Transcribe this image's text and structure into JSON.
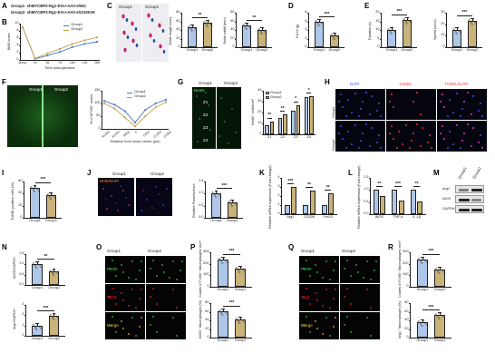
{
  "colors": {
    "group1": "#aec7e8",
    "group2": "#c9b37a",
    "line1": "#4a78c2",
    "line2": "#c6a24a",
    "dapi": "#3a57ff",
    "tunel": "#ff3535",
    "green": "#39d94a"
  },
  "panels": {
    "A": "A",
    "B": "B",
    "C": "C",
    "D": "D",
    "E": "E",
    "F": "F",
    "G": "G",
    "H": "H",
    "I": "I",
    "J": "J",
    "K": "K",
    "L": "L",
    "M": "M",
    "N": "N",
    "O": "O",
    "P": "P",
    "Q": "Q",
    "R": "R"
  },
  "a": {
    "line1_label": "Group1",
    "line1_value": "shMYCBP2-Rg1-EVs+AAV-shNC",
    "line2_label": "Group2",
    "line2_value": "shMYCBP2-Rg1-EVs+AAV-shS100A9"
  },
  "sig": {
    "s2": "**",
    "s3": "***",
    "s1": "*"
  },
  "groups": [
    "Group1",
    "Group2"
  ],
  "b": {
    "ylabel": "BMS score",
    "xlabel": "Time post-operative",
    "legend": [
      "Group1",
      "Group2"
    ],
    "xticks": [
      "preop",
      "1d",
      "3d",
      "7d",
      "14d",
      "21d",
      "28d"
    ],
    "yticks": [
      "0",
      "2",
      "4",
      "6",
      "8",
      "10"
    ]
  },
  "c": {
    "img_labels": [
      "Group1",
      "Group2"
    ],
    "p1": {
      "ylabel": "Stride length (mm)",
      "yticks": [
        "0",
        "20",
        "40",
        "60",
        "80"
      ]
    },
    "p2": {
      "ylabel": "Stride width (mm)",
      "yticks": [
        "0",
        "20",
        "40",
        "60",
        "80"
      ]
    }
  },
  "d": {
    "ylabel": "Force (g)",
    "yticks": [
      "0",
      "2",
      "4",
      "6",
      "8"
    ]
  },
  "e": {
    "p1": {
      "ylabel": "Duration (s)",
      "yticks": [
        "0",
        "5",
        "10",
        "15",
        "20"
      ]
    },
    "p2": {
      "ylabel": "Speed (cm/s)",
      "yticks": [
        "0",
        "10",
        "20",
        "30"
      ]
    }
  },
  "f": {
    "img_labels": [
      "Group1",
      "Group2"
    ],
    "ylabel": "% of NF200⁺ axons",
    "xlabel": "Distance from lesion centre (µm)",
    "legend": [
      "Group1",
      "Group2"
    ],
    "yticks": [
      "0",
      "50",
      "100",
      "150"
    ],
    "xticks": [
      "R1500",
      "R1000",
      "R500",
      "0",
      "C500",
      "C1000",
      "C1500"
    ]
  },
  "g": {
    "img_labels": [
      "Group1",
      "Group2"
    ],
    "channel": "NeuN",
    "zones": [
      "Z1",
      "Z2",
      "Z3",
      "Z4"
    ],
    "ylabel": "NeuN⁺ cells/mm²",
    "legend": [
      "Group1",
      "Group2"
    ],
    "yticks": [
      "0",
      "10",
      "20",
      "30",
      "40"
    ]
  },
  "h": {
    "cols": [
      "DAPI",
      "TUNEL",
      "TUNEL/DAPI"
    ],
    "rows": [
      "Group1",
      "Group2"
    ]
  },
  "i": {
    "ylabel": "TUNEL positive cells (%)",
    "yticks": [
      "0",
      "20",
      "40",
      "60"
    ]
  },
  "j": {
    "img_labels": [
      "Group1",
      "Group2"
    ],
    "channel": "DHE/DAPI",
    "ylabel": "Relative Fluorescence",
    "yticks": [
      "0.0",
      "0.5",
      "1.0",
      "1.5"
    ]
  },
  "k": {
    "ylabel": "Relative mRNA expression (Fold change)",
    "xticks": [
      "Arg1",
      "CD206",
      "Ym1/2"
    ],
    "yticks": [
      "0",
      "1",
      "2",
      "3",
      "4"
    ]
  },
  "l": {
    "ylabel": "Relative mRNA expression (Fold change)",
    "xticks": [
      "iNOS",
      "TNF-α",
      "IL-1β"
    ],
    "yticks": [
      "0.0",
      "0.5",
      "1.0",
      "1.5"
    ]
  },
  "m": {
    "cols": [
      "Group1",
      "Group2"
    ],
    "rows": [
      "Arg1",
      "iNOS",
      "GAPDH"
    ]
  },
  "n": {
    "p1": {
      "ylabel": "iNOS/GAPDH",
      "yticks": [
        "0.0",
        "0.5",
        "1.0",
        "1.5"
      ]
    },
    "p2": {
      "ylabel": "Arg1/GAPDH",
      "yticks": [
        "0",
        "1",
        "2",
        "3"
      ]
    }
  },
  "o": {
    "cols": [
      "Group1",
      "Group2"
    ],
    "rows": [
      "F4/80",
      "iNOS",
      "Merge"
    ]
  },
  "p": {
    "p1": {
      "ylabel": "Counts of F4/80⁺ Macrophages/ mm²",
      "yticks": [
        "0",
        "100",
        "200",
        "300"
      ]
    },
    "p2": {
      "ylabel": "iNOS⁺ Macrophages (%)",
      "yticks": [
        "0",
        "20",
        "40",
        "60",
        "80"
      ]
    }
  },
  "q": {
    "cols": [
      "Group1",
      "Group2"
    ],
    "rows": [
      "F4/80",
      "Arg1",
      "Merge"
    ]
  },
  "r": {
    "p1": {
      "ylabel": "Counts of F4/80⁺ Macrophages/ mm²",
      "yticks": [
        "0",
        "100",
        "200",
        "300"
      ]
    },
    "p2": {
      "ylabel": "Arg1⁺ Macrophages (%)",
      "yticks": [
        "0",
        "20",
        "40",
        "60",
        "80"
      ]
    }
  },
  "chart_data": [
    {
      "id": "B",
      "type": "line",
      "x": [
        "preop",
        "1d",
        "3d",
        "7d",
        "14d",
        "21d",
        "28d"
      ],
      "series": [
        {
          "name": "Group1",
          "values": [
            9,
            0.3,
            1.2,
            2.2,
            3.5,
            4.4,
            5.0
          ]
        },
        {
          "name": "Group2",
          "values": [
            9,
            0.4,
            1.8,
            3.0,
            4.4,
            5.4,
            6.2
          ]
        }
      ],
      "ylim": [
        0,
        10
      ]
    },
    {
      "id": "C1",
      "type": "bar",
      "categories": [
        "Group1",
        "Group2"
      ],
      "values": [
        46,
        56
      ],
      "ylim": [
        0,
        80
      ]
    },
    {
      "id": "C2",
      "type": "bar",
      "categories": [
        "Group1",
        "Group2"
      ],
      "values": [
        50,
        40
      ],
      "ylim": [
        0,
        80
      ]
    },
    {
      "id": "D",
      "type": "bar",
      "categories": [
        "Group1",
        "Group2"
      ],
      "values": [
        5.8,
        2.8
      ],
      "ylim": [
        0,
        8
      ]
    },
    {
      "id": "E1",
      "type": "bar",
      "categories": [
        "Group1",
        "Group2"
      ],
      "values": [
        10,
        16
      ],
      "ylim": [
        0,
        20
      ]
    },
    {
      "id": "E2",
      "type": "bar",
      "categories": [
        "Group1",
        "Group2"
      ],
      "values": [
        15,
        23
      ],
      "ylim": [
        0,
        30
      ]
    },
    {
      "id": "F",
      "type": "line",
      "x": [
        "R1500",
        "R1000",
        "R500",
        "0",
        "C500",
        "C1000",
        "C1500"
      ],
      "series": [
        {
          "name": "Group1",
          "values": [
            110,
            95,
            70,
            25,
            75,
            100,
            115
          ]
        },
        {
          "name": "Group2",
          "values": [
            100,
            80,
            45,
            10,
            50,
            85,
            105
          ]
        }
      ],
      "ylim": [
        0,
        150
      ]
    },
    {
      "id": "G",
      "type": "bar",
      "categories": [
        "Z1",
        "Z2",
        "Z3",
        "Z4"
      ],
      "series": [
        {
          "name": "Group1",
          "values": [
            8,
            15,
            22,
            34
          ]
        },
        {
          "name": "Group2",
          "values": [
            12,
            18,
            27,
            35
          ]
        }
      ],
      "ylim": [
        0,
        40
      ]
    },
    {
      "id": "I",
      "type": "bar",
      "categories": [
        "Group1",
        "Group2"
      ],
      "values": [
        50,
        37
      ],
      "ylim": [
        0,
        60
      ]
    },
    {
      "id": "J",
      "type": "bar",
      "categories": [
        "Group1",
        "Group2"
      ],
      "values": [
        1.0,
        0.62
      ],
      "ylim": [
        0,
        1.5
      ]
    },
    {
      "id": "K",
      "type": "bar",
      "categories": [
        "Arg1",
        "CD206",
        "Ym1/2"
      ],
      "series": [
        {
          "name": "Group1",
          "values": [
            1.0,
            1.0,
            1.0
          ]
        },
        {
          "name": "Group2",
          "values": [
            3.0,
            2.6,
            2.3
          ]
        }
      ],
      "ylim": [
        0,
        4
      ]
    },
    {
      "id": "L",
      "type": "bar",
      "categories": [
        "iNOS",
        "TNF-α",
        "IL-1β"
      ],
      "series": [
        {
          "name": "Group1",
          "values": [
            1.0,
            1.0,
            1.0
          ]
        },
        {
          "name": "Group2",
          "values": [
            0.75,
            0.58,
            0.52
          ]
        }
      ],
      "ylim": [
        0,
        1.5
      ]
    },
    {
      "id": "N1",
      "type": "bar",
      "categories": [
        "Group1",
        "Group2"
      ],
      "values": [
        1.0,
        0.65
      ],
      "ylim": [
        0,
        1.5
      ]
    },
    {
      "id": "N2",
      "type": "bar",
      "categories": [
        "Group1",
        "Group2"
      ],
      "values": [
        1.0,
        1.9
      ],
      "ylim": [
        0,
        3
      ]
    },
    {
      "id": "P1",
      "type": "bar",
      "categories": [
        "Group1",
        "Group2"
      ],
      "values": [
        240,
        160
      ],
      "ylim": [
        0,
        300
      ]
    },
    {
      "id": "P2",
      "type": "bar",
      "categories": [
        "Group1",
        "Group2"
      ],
      "values": [
        62,
        42
      ],
      "ylim": [
        0,
        80
      ]
    },
    {
      "id": "R1",
      "type": "bar",
      "categories": [
        "Group1",
        "Group2"
      ],
      "values": [
        240,
        150
      ],
      "ylim": [
        0,
        300
      ]
    },
    {
      "id": "R2",
      "type": "bar",
      "categories": [
        "Group1",
        "Group2"
      ],
      "values": [
        35,
        52
      ],
      "ylim": [
        0,
        80
      ]
    }
  ]
}
